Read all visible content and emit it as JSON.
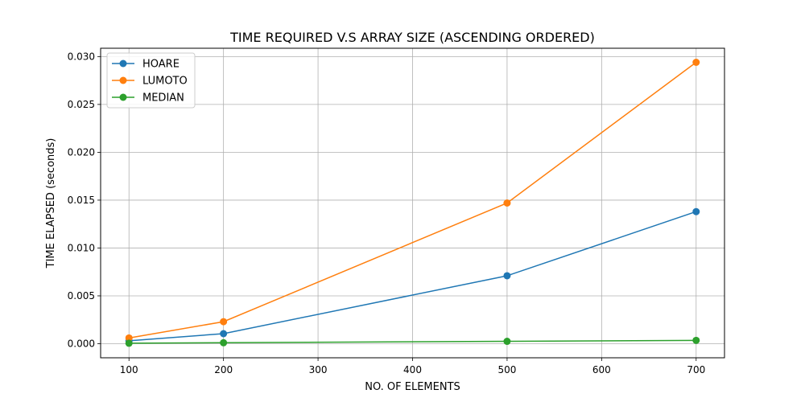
{
  "chart_data": {
    "type": "line",
    "title": "TIME REQUIRED V.S ARRAY SIZE (ASCENDING ORDERED)",
    "xlabel": "NO. OF ELEMENTS",
    "ylabel": "TIME ELAPSED (seconds)",
    "x": [
      100,
      200,
      500,
      700
    ],
    "xlim": [
      70,
      730
    ],
    "ylim": [
      -0.00147,
      0.03087
    ],
    "xticks": [
      100,
      200,
      300,
      400,
      500,
      600,
      700
    ],
    "xtick_labels": [
      "100",
      "200",
      "300",
      "400",
      "500",
      "600",
      "700"
    ],
    "yticks": [
      0,
      0.005,
      0.01,
      0.015,
      0.02,
      0.025,
      0.03
    ],
    "ytick_labels": [
      "0.000",
      "0.005",
      "0.010",
      "0.015",
      "0.020",
      "0.025",
      "0.030"
    ],
    "grid": true,
    "legend_position": "top-left",
    "marker": "circle",
    "series": [
      {
        "name": "HOARE",
        "color": "#1f77b4",
        "values": [
          0.0003,
          0.00105,
          0.0071,
          0.0138
        ]
      },
      {
        "name": "LUMOTO",
        "color": "#ff7f0e",
        "values": [
          0.0006,
          0.0023,
          0.0147,
          0.0294
        ]
      },
      {
        "name": "MEDIAN",
        "color": "#2ca02c",
        "values": [
          5e-05,
          0.0001,
          0.00025,
          0.00035
        ]
      }
    ]
  }
}
